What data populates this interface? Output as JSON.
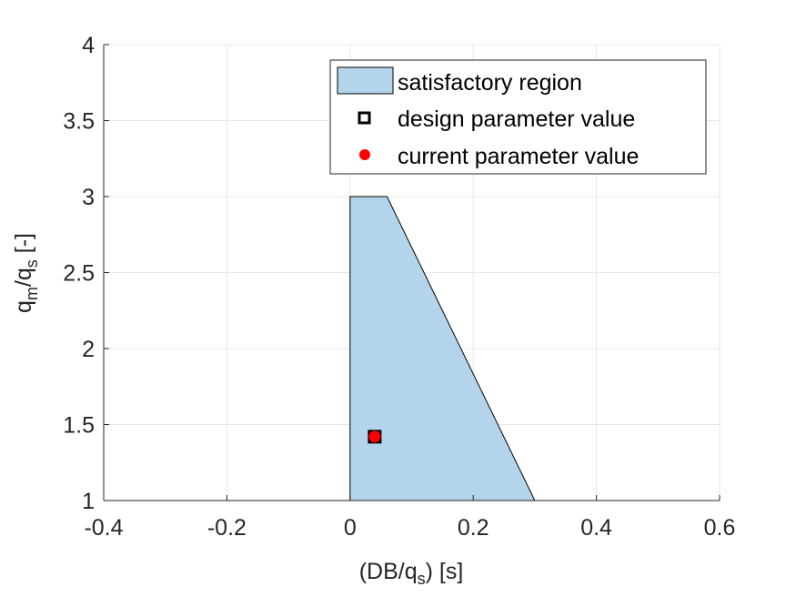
{
  "chart_data": {
    "type": "area",
    "xlabel_main": "(DB/q",
    "xlabel_sub": "s",
    "xlabel_tail": ") [s]",
    "ylabel_q1": "q",
    "ylabel_sub1": "m",
    "ylabel_slash": "/q",
    "ylabel_sub2": "s",
    "ylabel_tail": " [-]",
    "xlim": [
      -0.4,
      0.6
    ],
    "ylim": [
      1,
      4
    ],
    "xticks": [
      -0.4,
      -0.2,
      0,
      0.2,
      0.4,
      0.6
    ],
    "xtick_labels": [
      "-0.4",
      "-0.2",
      "0",
      "0.2",
      "0.4",
      "0.6"
    ],
    "yticks": [
      1,
      1.5,
      2,
      2.5,
      3,
      3.5,
      4
    ],
    "ytick_labels": [
      "1",
      "1.5",
      "2",
      "2.5",
      "3",
      "3.5",
      "4"
    ],
    "grid": true,
    "legend_position": "top-right",
    "region": {
      "name": "satisfactory region",
      "color": "#b3d4ea",
      "vertices": [
        [
          0,
          1
        ],
        [
          0,
          3
        ],
        [
          0.06,
          3
        ],
        [
          0.3,
          1
        ]
      ]
    },
    "design_point": {
      "name": "design parameter value",
      "x": 0.04,
      "y": 1.42
    },
    "current_point": {
      "name": "current parameter value",
      "x": 0.04,
      "y": 1.42,
      "color": "#ff0000"
    }
  }
}
